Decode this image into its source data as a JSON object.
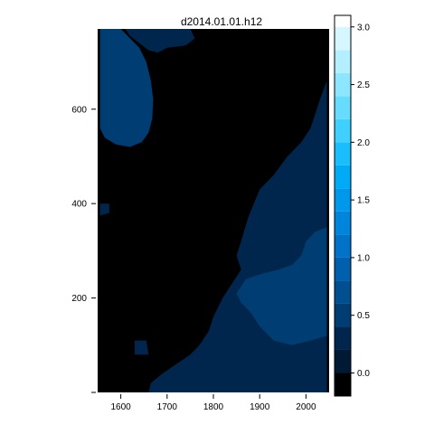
{
  "chart_data": {
    "type": "heatmap",
    "title": "d2014.01.01.h12",
    "xlabel": "",
    "ylabel": "",
    "xlim": [
      1550,
      2050
    ],
    "ylim": [
      0,
      770
    ],
    "x_ticks": [
      1600,
      1700,
      1800,
      1900,
      2000
    ],
    "y_ticks": [
      0,
      200,
      400,
      600
    ],
    "y_tick_labels": [
      "",
      "200",
      "400",
      "600"
    ],
    "colorbar": {
      "range": [
        -0.2,
        3.1
      ],
      "ticks": [
        0.0,
        0.5,
        1.0,
        1.5,
        2.0,
        2.5,
        3.0
      ],
      "breaks": [
        -0.2,
        0.0,
        0.2,
        0.4,
        0.6,
        0.8,
        1.0,
        1.2,
        1.4,
        1.6,
        1.8,
        2.0,
        2.2,
        2.4,
        2.6,
        2.8,
        3.0,
        3.1
      ],
      "colors": [
        "#000000",
        "#001a33",
        "#00264d",
        "#003d73",
        "#004f91",
        "#0060ad",
        "#0072c8",
        "#0085dc",
        "#0098ec",
        "#00abf6",
        "#1abefc",
        "#3fd0ff",
        "#66dcff",
        "#8de6ff",
        "#b3efff",
        "#d6f7ff",
        "#ffffff"
      ]
    },
    "regions": [
      {
        "name": "upper-left-high",
        "value": 0.9,
        "polygon": [
          [
            1560,
            720
          ],
          [
            1590,
            720
          ],
          [
            1600,
            690
          ],
          [
            1620,
            680
          ],
          [
            1635,
            660
          ],
          [
            1645,
            640
          ],
          [
            1650,
            610
          ],
          [
            1655,
            580
          ],
          [
            1650,
            560
          ],
          [
            1640,
            545
          ],
          [
            1620,
            540
          ],
          [
            1600,
            545
          ],
          [
            1580,
            560
          ],
          [
            1565,
            580
          ],
          [
            1560,
            620
          ]
        ]
      },
      {
        "name": "upper-left-mid",
        "value": 0.5,
        "polygon": [
          [
            1555,
            770
          ],
          [
            1600,
            770
          ],
          [
            1620,
            750
          ],
          [
            1640,
            730
          ],
          [
            1655,
            700
          ],
          [
            1665,
            660
          ],
          [
            1670,
            620
          ],
          [
            1668,
            580
          ],
          [
            1660,
            550
          ],
          [
            1645,
            530
          ],
          [
            1620,
            520
          ],
          [
            1590,
            525
          ],
          [
            1565,
            540
          ],
          [
            1555,
            560
          ]
        ]
      },
      {
        "name": "top-strip",
        "value": 0.2,
        "polygon": [
          [
            1610,
            770
          ],
          [
            1750,
            770
          ],
          [
            1760,
            750
          ],
          [
            1740,
            735
          ],
          [
            1700,
            730
          ],
          [
            1680,
            720
          ],
          [
            1660,
            725
          ],
          [
            1640,
            740
          ],
          [
            1620,
            755
          ]
        ]
      },
      {
        "name": "left-spot",
        "value": 0.3,
        "polygon": [
          [
            1555,
            400
          ],
          [
            1575,
            400
          ],
          [
            1575,
            380
          ],
          [
            1555,
            375
          ]
        ]
      },
      {
        "name": "lower-right-low",
        "value": 0.2,
        "polygon": [
          [
            1660,
            0
          ],
          [
            1665,
            20
          ],
          [
            1690,
            40
          ],
          [
            1720,
            60
          ],
          [
            1750,
            80
          ],
          [
            1770,
            100
          ],
          [
            1790,
            130
          ],
          [
            1800,
            160
          ],
          [
            1820,
            200
          ],
          [
            1840,
            230
          ],
          [
            1860,
            260
          ],
          [
            1850,
            290
          ],
          [
            1860,
            320
          ],
          [
            1875,
            370
          ],
          [
            1900,
            430
          ],
          [
            1930,
            460
          ],
          [
            1960,
            500
          ],
          [
            1990,
            530
          ],
          [
            2010,
            560
          ],
          [
            2030,
            620
          ],
          [
            2045,
            660
          ],
          [
            2045,
            0
          ]
        ]
      },
      {
        "name": "lower-right-mid",
        "value": 0.4,
        "polygon": [
          [
            1850,
            210
          ],
          [
            1870,
            240
          ],
          [
            1900,
            250
          ],
          [
            1940,
            260
          ],
          [
            1970,
            270
          ],
          [
            1990,
            290
          ],
          [
            2000,
            320
          ],
          [
            2020,
            340
          ],
          [
            2045,
            350
          ],
          [
            2045,
            120
          ],
          [
            2010,
            110
          ],
          [
            1970,
            100
          ],
          [
            1930,
            110
          ],
          [
            1900,
            140
          ],
          [
            1880,
            170
          ],
          [
            1860,
            190
          ]
        ]
      },
      {
        "name": "bottom-spot",
        "value": 0.3,
        "polygon": [
          [
            1630,
            110
          ],
          [
            1655,
            110
          ],
          [
            1660,
            80
          ],
          [
            1630,
            80
          ]
        ]
      }
    ]
  }
}
